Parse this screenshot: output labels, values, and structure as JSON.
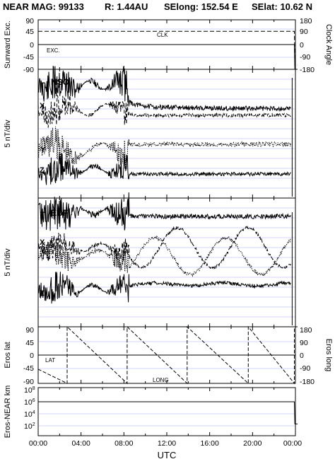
{
  "header": {
    "title": "NEAR MAG: 99133",
    "r": "R: 1.44AU",
    "selong": "SElong:  152.54 E",
    "selat": "SElat:   10.62 N"
  },
  "colors": {
    "axis": "#000000",
    "grid": "#c8c8ff",
    "line": "#000000"
  },
  "chart_data": [
    {
      "id": "panel-1",
      "type": "line",
      "ylabel_left": "Sunward Exc.",
      "ylabel_right": "Clock Angle",
      "yticks_left": [
        "90",
        "45",
        "0",
        "-45",
        "-90"
      ],
      "yticks_right": [
        "180",
        "90",
        "0",
        "-90",
        "-180"
      ],
      "ylim": [
        -90,
        90
      ],
      "annotations": [
        "CLK",
        "EXC."
      ],
      "series": [
        {
          "style": "dashed",
          "x": [
            0,
            23.9,
            23.95,
            24.2
          ],
          "values": [
            48,
            48,
            -75,
            -75
          ]
        },
        {
          "style": "solid",
          "x": [
            0,
            23.9,
            23.95,
            24.2
          ],
          "values": [
            0,
            0,
            -90,
            -90
          ]
        }
      ]
    },
    {
      "id": "panel-2",
      "type": "line",
      "label": "NSO",
      "ylabel_left": "5 nT/div",
      "components": [
        "T",
        "X",
        "Y",
        "Z"
      ]
    },
    {
      "id": "panel-3",
      "type": "line",
      "label": "EBF",
      "ylabel_left": "5 nT/div",
      "components": [
        "T",
        "X",
        "Y",
        "Z"
      ]
    },
    {
      "id": "panel-4",
      "type": "line",
      "ylabel_left": "Eros lat",
      "ylabel_right": "Eros long",
      "yticks_left": [
        "90",
        "45",
        "0",
        "-45",
        "-90"
      ],
      "yticks_right": [
        "180",
        "90",
        "0",
        "-90",
        "-180"
      ],
      "ylim": [
        -90,
        90
      ],
      "annotations": [
        "LAT",
        "LONG"
      ],
      "series": [
        {
          "style": "solid",
          "x": [
            0,
            24.0
          ],
          "values": [
            0,
            0
          ]
        },
        {
          "style": "dashed",
          "long_deg": true,
          "x": [
            0,
            2.7,
            2.7,
            8.3,
            8.3,
            13.9,
            13.9,
            19.6,
            19.6,
            23.9,
            23.9,
            24.2
          ],
          "values": [
            -90,
            -180,
            180,
            -180,
            180,
            -180,
            180,
            -180,
            180,
            -180,
            180,
            180
          ]
        }
      ]
    },
    {
      "id": "panel-5",
      "type": "line",
      "ylabel_left": "Eros-NEAR km",
      "yscale": "log",
      "yticks_left": [
        "10^8",
        "10^6",
        "10^4",
        "10^2"
      ],
      "series": [
        {
          "style": "solid",
          "x": [
            0,
            23.9,
            23.95,
            24.2
          ],
          "values": [
            1000000,
            1000000,
            200,
            200
          ]
        }
      ]
    }
  ],
  "xaxis": {
    "label": "UTC",
    "ticks": [
      "00:00",
      "04:00",
      "08:00",
      "12:00",
      "16:00",
      "20:00",
      "00:00"
    ],
    "range_hours": [
      0,
      24
    ]
  }
}
